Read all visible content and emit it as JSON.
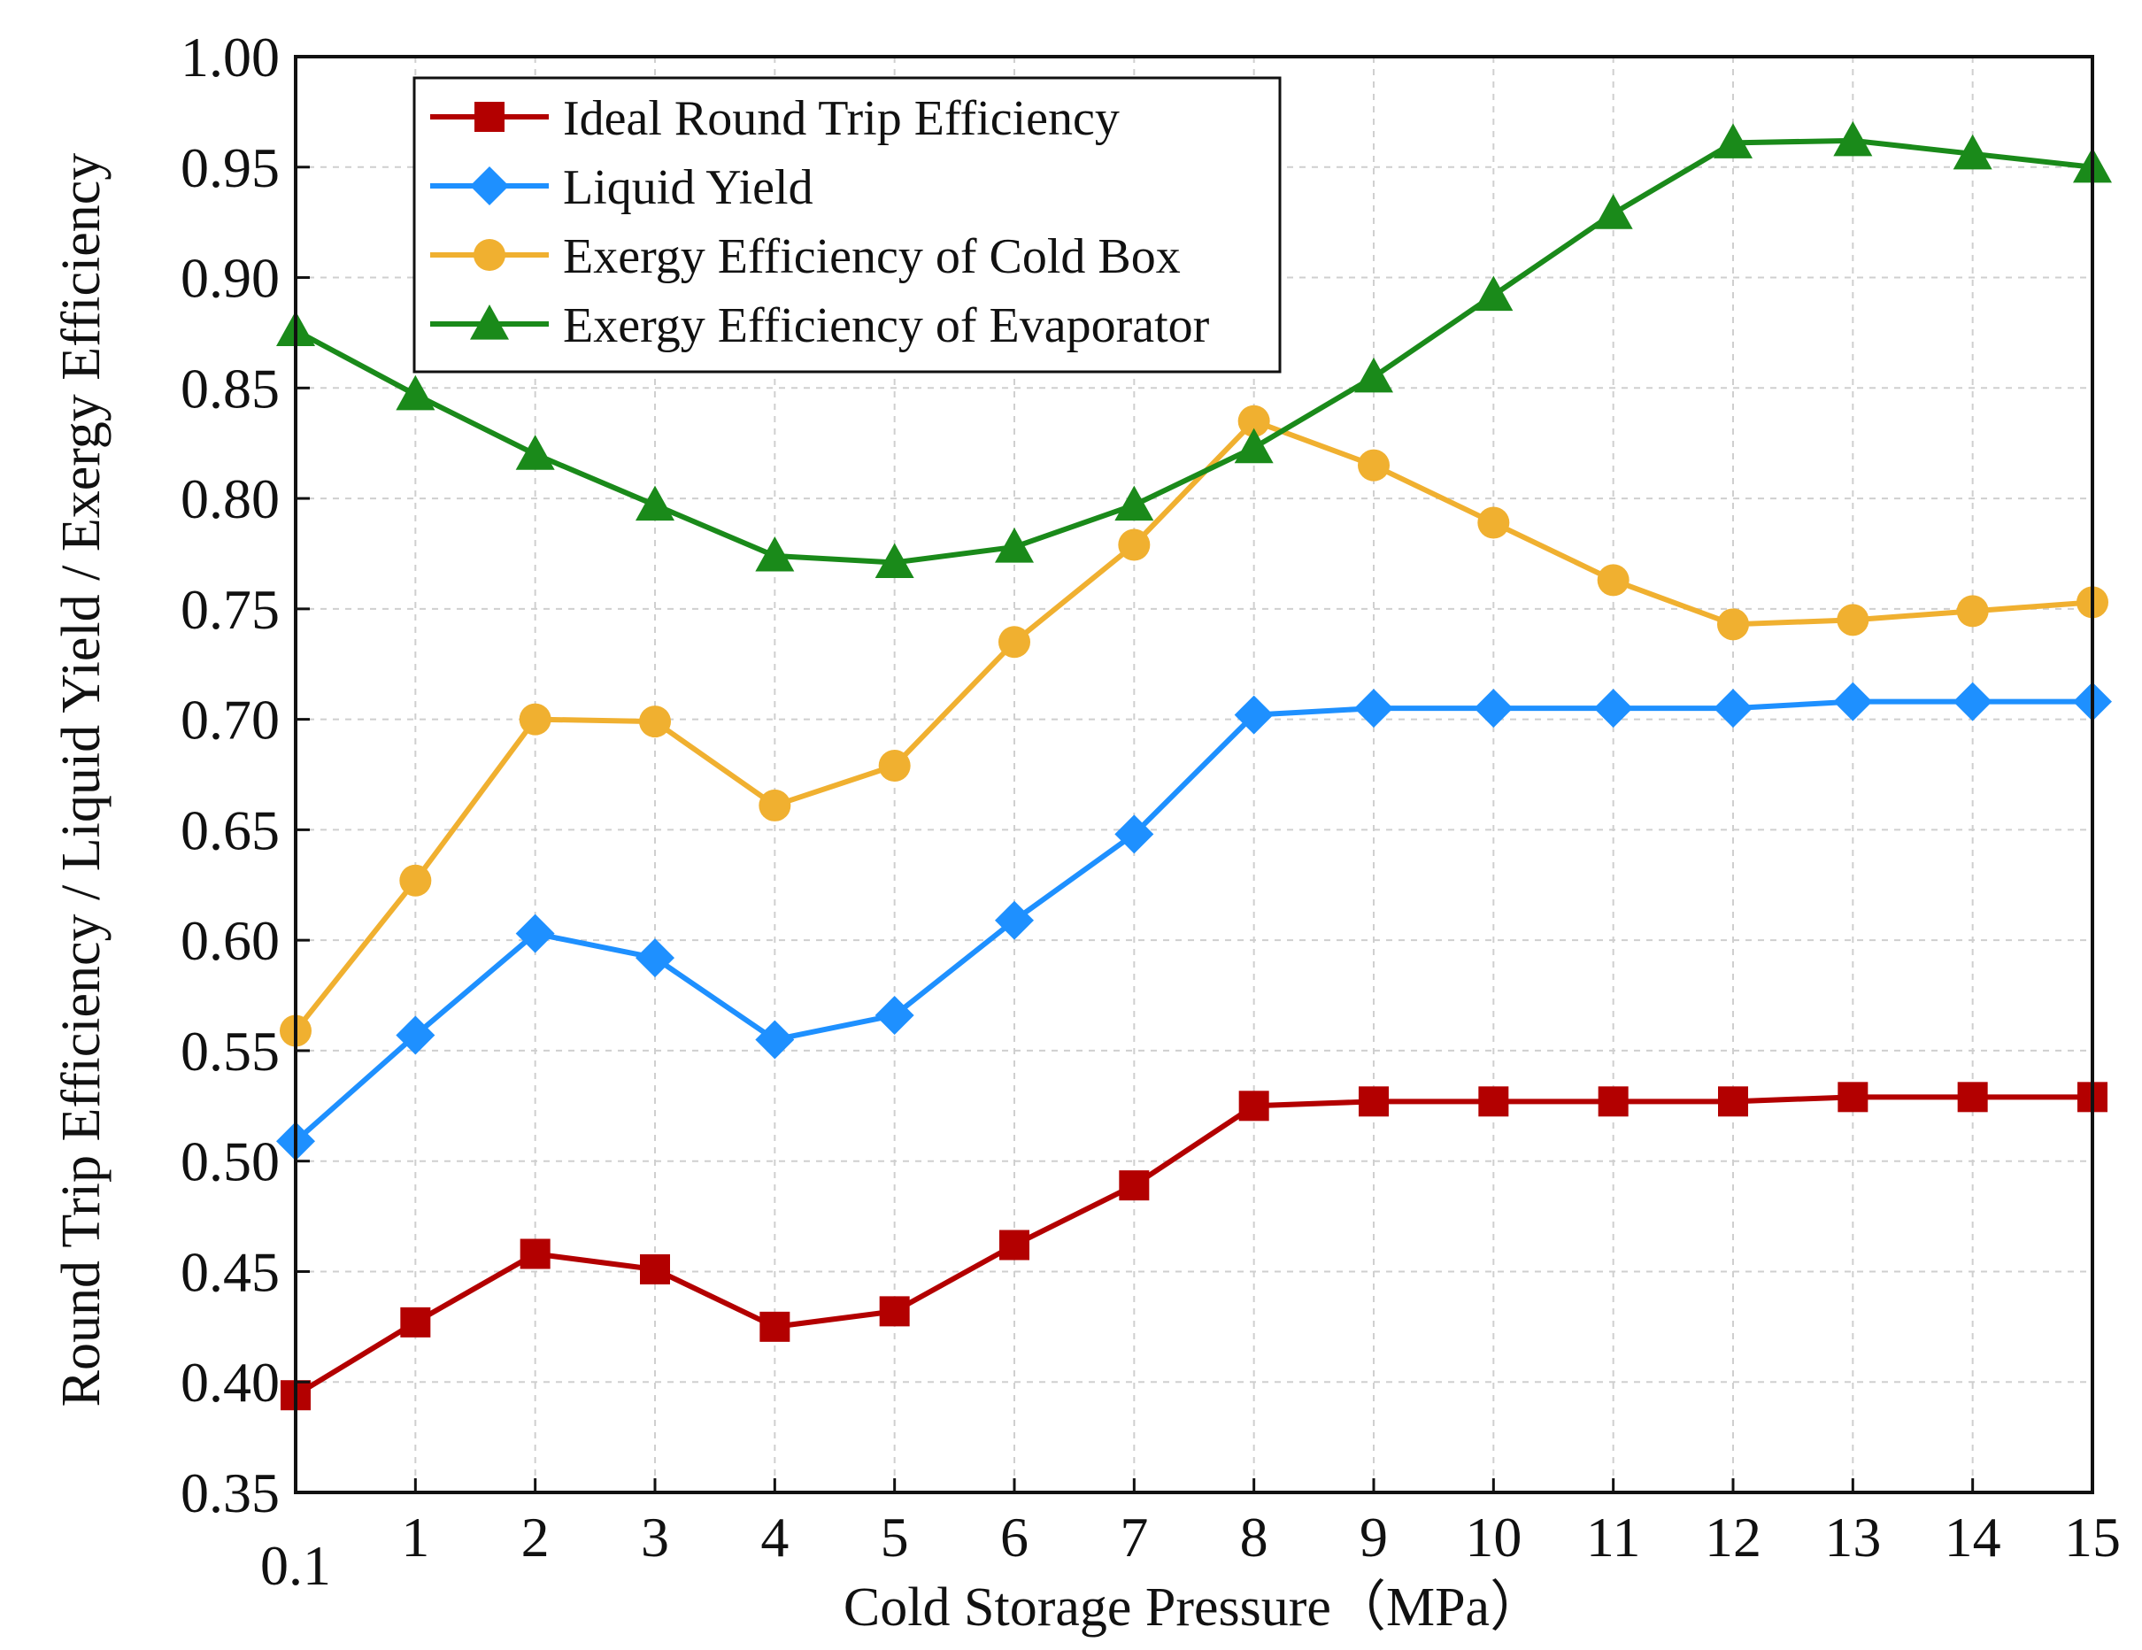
{
  "chart_data": {
    "type": "line",
    "title": "",
    "xlabel": "Cold Storage Pressure（MPa）",
    "ylabel": "Round Trip Efficiency / Liquid Yield / Exergy Efficiency",
    "categories": [
      "0.1",
      "1",
      "2",
      "3",
      "4",
      "5",
      "6",
      "7",
      "8",
      "9",
      "10",
      "11",
      "12",
      "13",
      "14",
      "15"
    ],
    "ylim": [
      0.35,
      1.0
    ],
    "yticks": [
      "0.35",
      "0.40",
      "0.45",
      "0.50",
      "0.55",
      "0.60",
      "0.65",
      "0.70",
      "0.75",
      "0.80",
      "0.85",
      "0.90",
      "0.95",
      "1.00"
    ],
    "grid": true,
    "legend_position": "top-left",
    "series": [
      {
        "name": "Ideal Round Trip Efficiency",
        "color": "#b30000",
        "marker": "square",
        "values": [
          0.394,
          0.427,
          0.458,
          0.451,
          0.425,
          0.432,
          0.462,
          0.489,
          0.525,
          0.527,
          0.527,
          0.527,
          0.527,
          0.529,
          0.529,
          0.529
        ]
      },
      {
        "name": "Liquid Yield",
        "color": "#1e90ff",
        "marker": "diamond",
        "values": [
          0.509,
          0.557,
          0.603,
          0.592,
          0.555,
          0.566,
          0.609,
          0.648,
          0.702,
          0.705,
          0.705,
          0.705,
          0.705,
          0.708,
          0.708,
          0.708
        ]
      },
      {
        "name": "Exergy Efficiency of Cold Box",
        "color": "#f0b030",
        "marker": "circle",
        "values": [
          0.559,
          0.627,
          0.7,
          0.699,
          0.661,
          0.679,
          0.735,
          0.779,
          0.835,
          0.815,
          0.789,
          0.763,
          0.743,
          0.745,
          0.749,
          0.753
        ]
      },
      {
        "name": "Exergy Efficiency of Evaporator",
        "color": "#1a8a1a",
        "marker": "triangle",
        "values": [
          0.876,
          0.847,
          0.82,
          0.797,
          0.774,
          0.771,
          0.778,
          0.797,
          0.823,
          0.855,
          0.892,
          0.929,
          0.961,
          0.962,
          0.956,
          0.95
        ]
      }
    ]
  }
}
